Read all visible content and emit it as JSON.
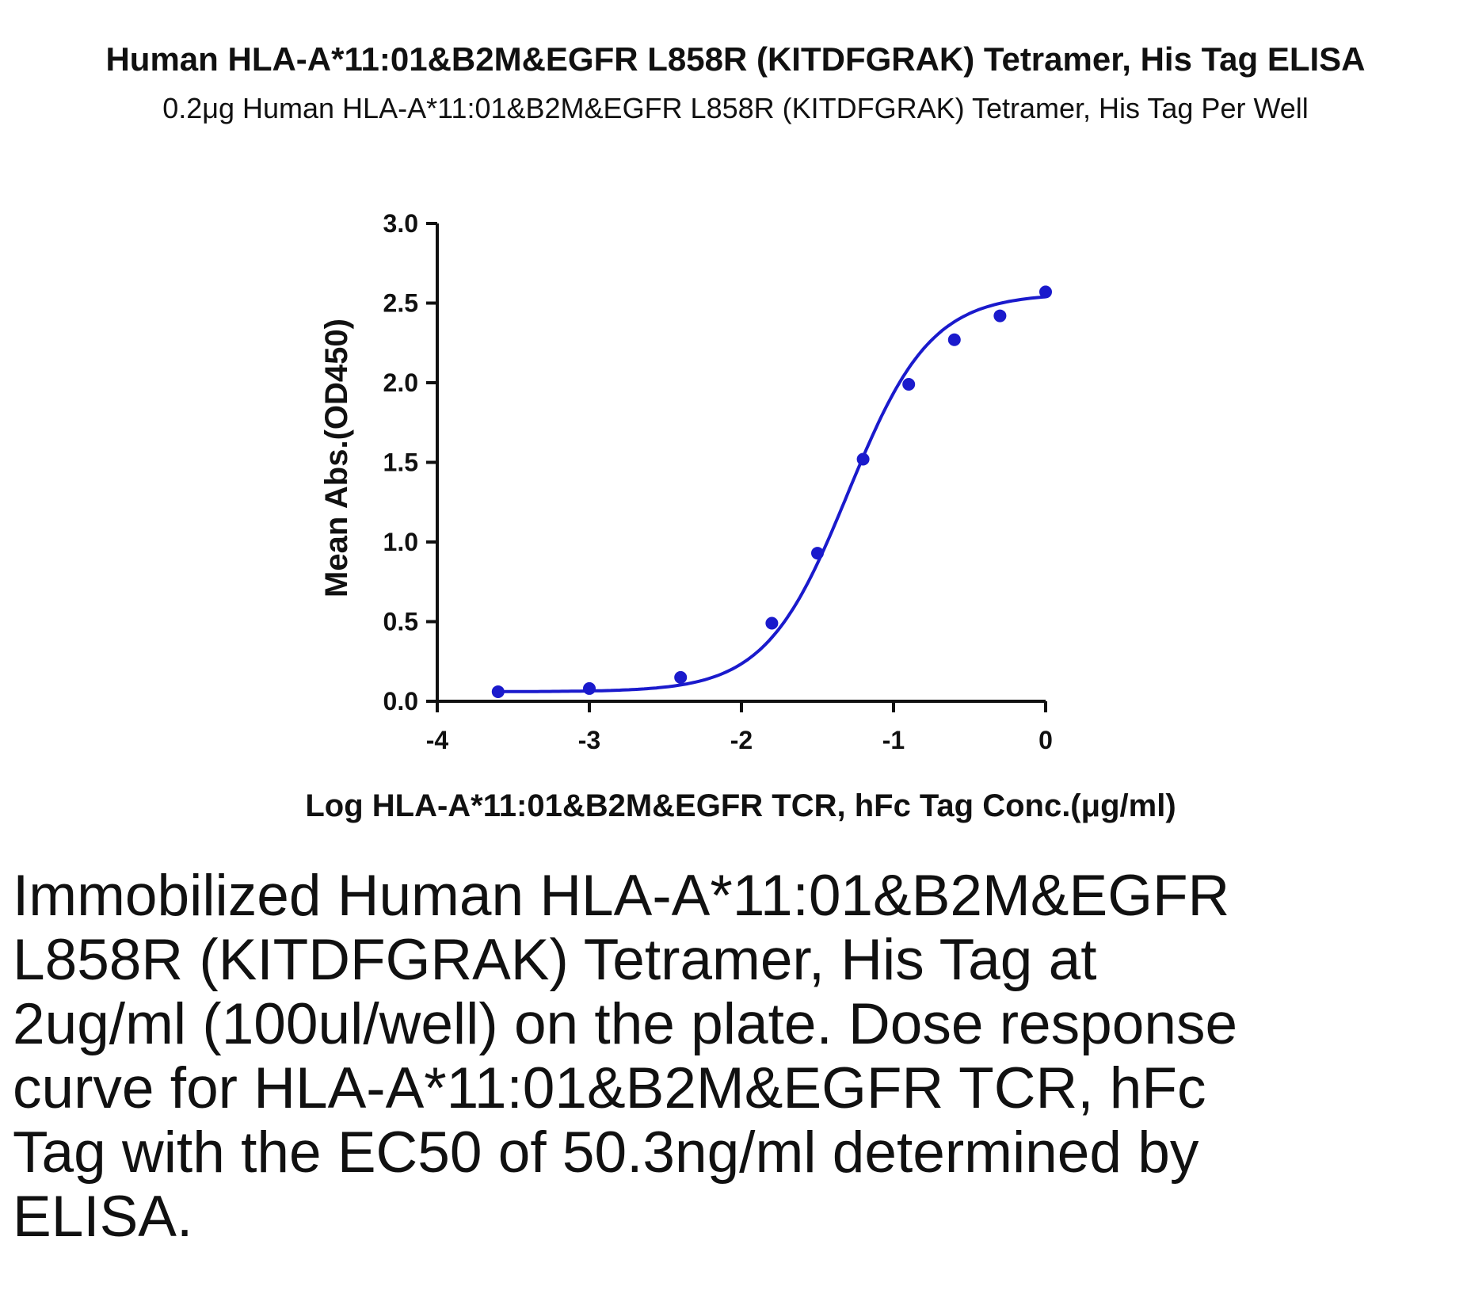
{
  "chart_data": {
    "type": "scatter",
    "title": "Human HLA-A*11:01&B2M&EGFR L858R (KITDFGRAK) Tetramer, His Tag ELISA",
    "subtitle": "0.2μg Human HLA-A*11:01&B2M&EGFR L858R (KITDFGRAK) Tetramer, His Tag Per Well",
    "xlabel": "Log HLA-A*11:01&B2M&EGFR TCR, hFc Tag Conc.(μg/ml)",
    "ylabel": "Mean Abs.(OD450)",
    "xlim": [
      -4,
      0
    ],
    "ylim": [
      0,
      3.0
    ],
    "x_ticks": [
      "-4",
      "-3",
      "-2",
      "-1",
      "0"
    ],
    "y_ticks": [
      "0.0",
      "0.5",
      "1.0",
      "1.5",
      "2.0",
      "2.5",
      "3.0"
    ],
    "series": [
      {
        "color": "#1a1acc",
        "points": [
          {
            "x": -3.6,
            "y": 0.06
          },
          {
            "x": -3.0,
            "y": 0.08
          },
          {
            "x": -2.4,
            "y": 0.15
          },
          {
            "x": -1.8,
            "y": 0.49
          },
          {
            "x": -1.5,
            "y": 0.93
          },
          {
            "x": -1.2,
            "y": 1.52
          },
          {
            "x": -0.9,
            "y": 1.99
          },
          {
            "x": -0.6,
            "y": 2.27
          },
          {
            "x": -0.3,
            "y": 2.42
          },
          {
            "x": 0.0,
            "y": 2.57
          }
        ]
      }
    ],
    "fit_curve": {
      "model": "4PL",
      "bottom": 0.06,
      "top": 2.56,
      "ec50": 50.3,
      "ec50_unit": "ng/ml",
      "hill_slope": 1.6
    },
    "grid": false,
    "legend": "none"
  },
  "caption": "Immobilized Human HLA-A*11:01&B2M&EGFR L858R (KITDFGRAK) Tetramer, His Tag at 2ug/ml (100ul/well) on the plate. Dose response curve for HLA-A*11:01&B2M&EGFR TCR, hFc Tag with the EC50 of 50.3ng/ml determined by ELISA."
}
